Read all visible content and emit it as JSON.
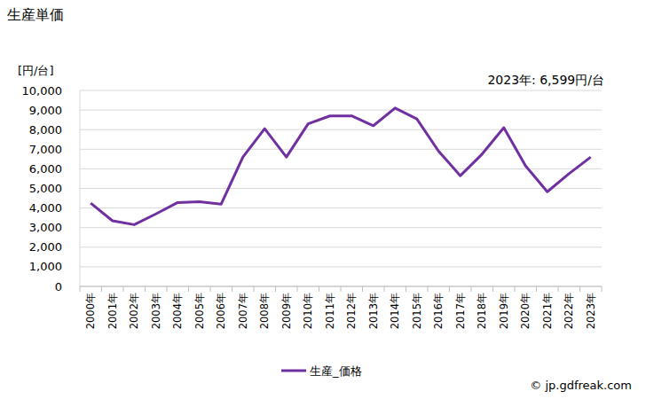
{
  "chart_data": {
    "type": "line",
    "title": "生産単価",
    "y_label": "[円/台]",
    "annotation": "2023年: 6,599円/台",
    "source": "© jp.gdfreak.com",
    "categories": [
      "2000年",
      "2001年",
      "2002年",
      "2003年",
      "2004年",
      "2005年",
      "2006年",
      "2007年",
      "2008年",
      "2009年",
      "2010年",
      "2011年",
      "2012年",
      "2013年",
      "2014年",
      "2015年",
      "2016年",
      "2017年",
      "2018年",
      "2019年",
      "2020年",
      "2021年",
      "2022年",
      "2023年"
    ],
    "series": [
      {
        "name": "生産_価格",
        "color": "#7030a0",
        "values": [
          4250,
          3350,
          3150,
          3700,
          4280,
          4320,
          4200,
          6600,
          8050,
          6600,
          8300,
          8700,
          8700,
          8200,
          9100,
          8550,
          6900,
          5650,
          6750,
          8100,
          6150,
          4830,
          5750,
          6599
        ]
      }
    ],
    "ylim": [
      0,
      10000
    ],
    "yticks": [
      0,
      {
        "value": 1000,
        "label": "1,000"
      },
      {
        "value": 2000,
        "label": "2,000"
      },
      {
        "value": 3000,
        "label": "3,000"
      },
      {
        "value": 4000,
        "label": "4,000"
      },
      {
        "value": 5000,
        "label": "5,000"
      },
      {
        "value": 6000,
        "label": "6,000"
      },
      {
        "value": 7000,
        "label": "7,000"
      },
      {
        "value": 8000,
        "label": "8,000"
      },
      {
        "value": 9000,
        "label": "9,000"
      },
      {
        "value": 10000,
        "label": "10,000"
      }
    ],
    "grid": true,
    "legend": "bottom"
  }
}
